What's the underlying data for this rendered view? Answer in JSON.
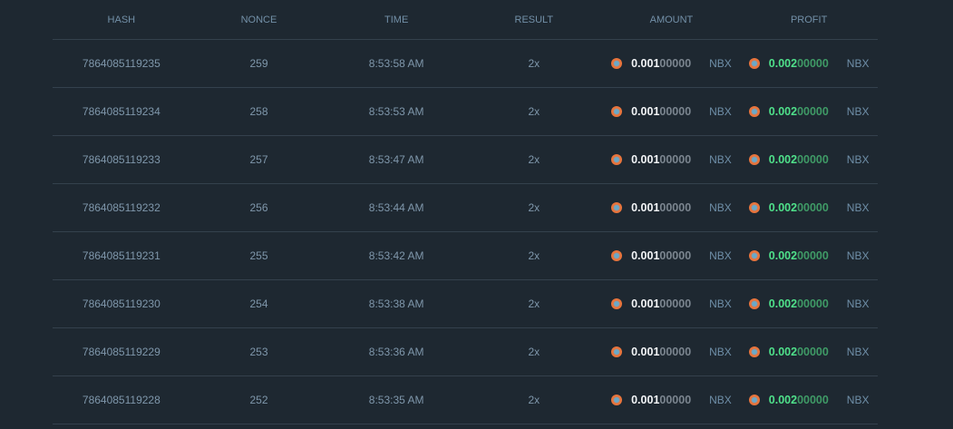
{
  "headers": [
    "HASH",
    "NONCE",
    "TIME",
    "RESULT",
    "AMOUNT",
    "PROFIT"
  ],
  "currency": "NBX",
  "coin_icon": "nbx-coin-icon",
  "colors": {
    "profit": "#4fe08a",
    "amount": "#f2f4f6"
  },
  "rows": [
    {
      "hash": "7864085119235",
      "nonce": "259",
      "time": "8:53:58 AM",
      "result": "2x",
      "amount_hi": "0.001",
      "amount_lo": "00000",
      "profit_hi": "0.002",
      "profit_lo": "00000"
    },
    {
      "hash": "7864085119234",
      "nonce": "258",
      "time": "8:53:53 AM",
      "result": "2x",
      "amount_hi": "0.001",
      "amount_lo": "00000",
      "profit_hi": "0.002",
      "profit_lo": "00000"
    },
    {
      "hash": "7864085119233",
      "nonce": "257",
      "time": "8:53:47 AM",
      "result": "2x",
      "amount_hi": "0.001",
      "amount_lo": "00000",
      "profit_hi": "0.002",
      "profit_lo": "00000"
    },
    {
      "hash": "7864085119232",
      "nonce": "256",
      "time": "8:53:44 AM",
      "result": "2x",
      "amount_hi": "0.001",
      "amount_lo": "00000",
      "profit_hi": "0.002",
      "profit_lo": "00000"
    },
    {
      "hash": "7864085119231",
      "nonce": "255",
      "time": "8:53:42 AM",
      "result": "2x",
      "amount_hi": "0.001",
      "amount_lo": "00000",
      "profit_hi": "0.002",
      "profit_lo": "00000"
    },
    {
      "hash": "7864085119230",
      "nonce": "254",
      "time": "8:53:38 AM",
      "result": "2x",
      "amount_hi": "0.001",
      "amount_lo": "00000",
      "profit_hi": "0.002",
      "profit_lo": "00000"
    },
    {
      "hash": "7864085119229",
      "nonce": "253",
      "time": "8:53:36 AM",
      "result": "2x",
      "amount_hi": "0.001",
      "amount_lo": "00000",
      "profit_hi": "0.002",
      "profit_lo": "00000"
    },
    {
      "hash": "7864085119228",
      "nonce": "252",
      "time": "8:53:35 AM",
      "result": "2x",
      "amount_hi": "0.001",
      "amount_lo": "00000",
      "profit_hi": "0.002",
      "profit_lo": "00000"
    }
  ]
}
